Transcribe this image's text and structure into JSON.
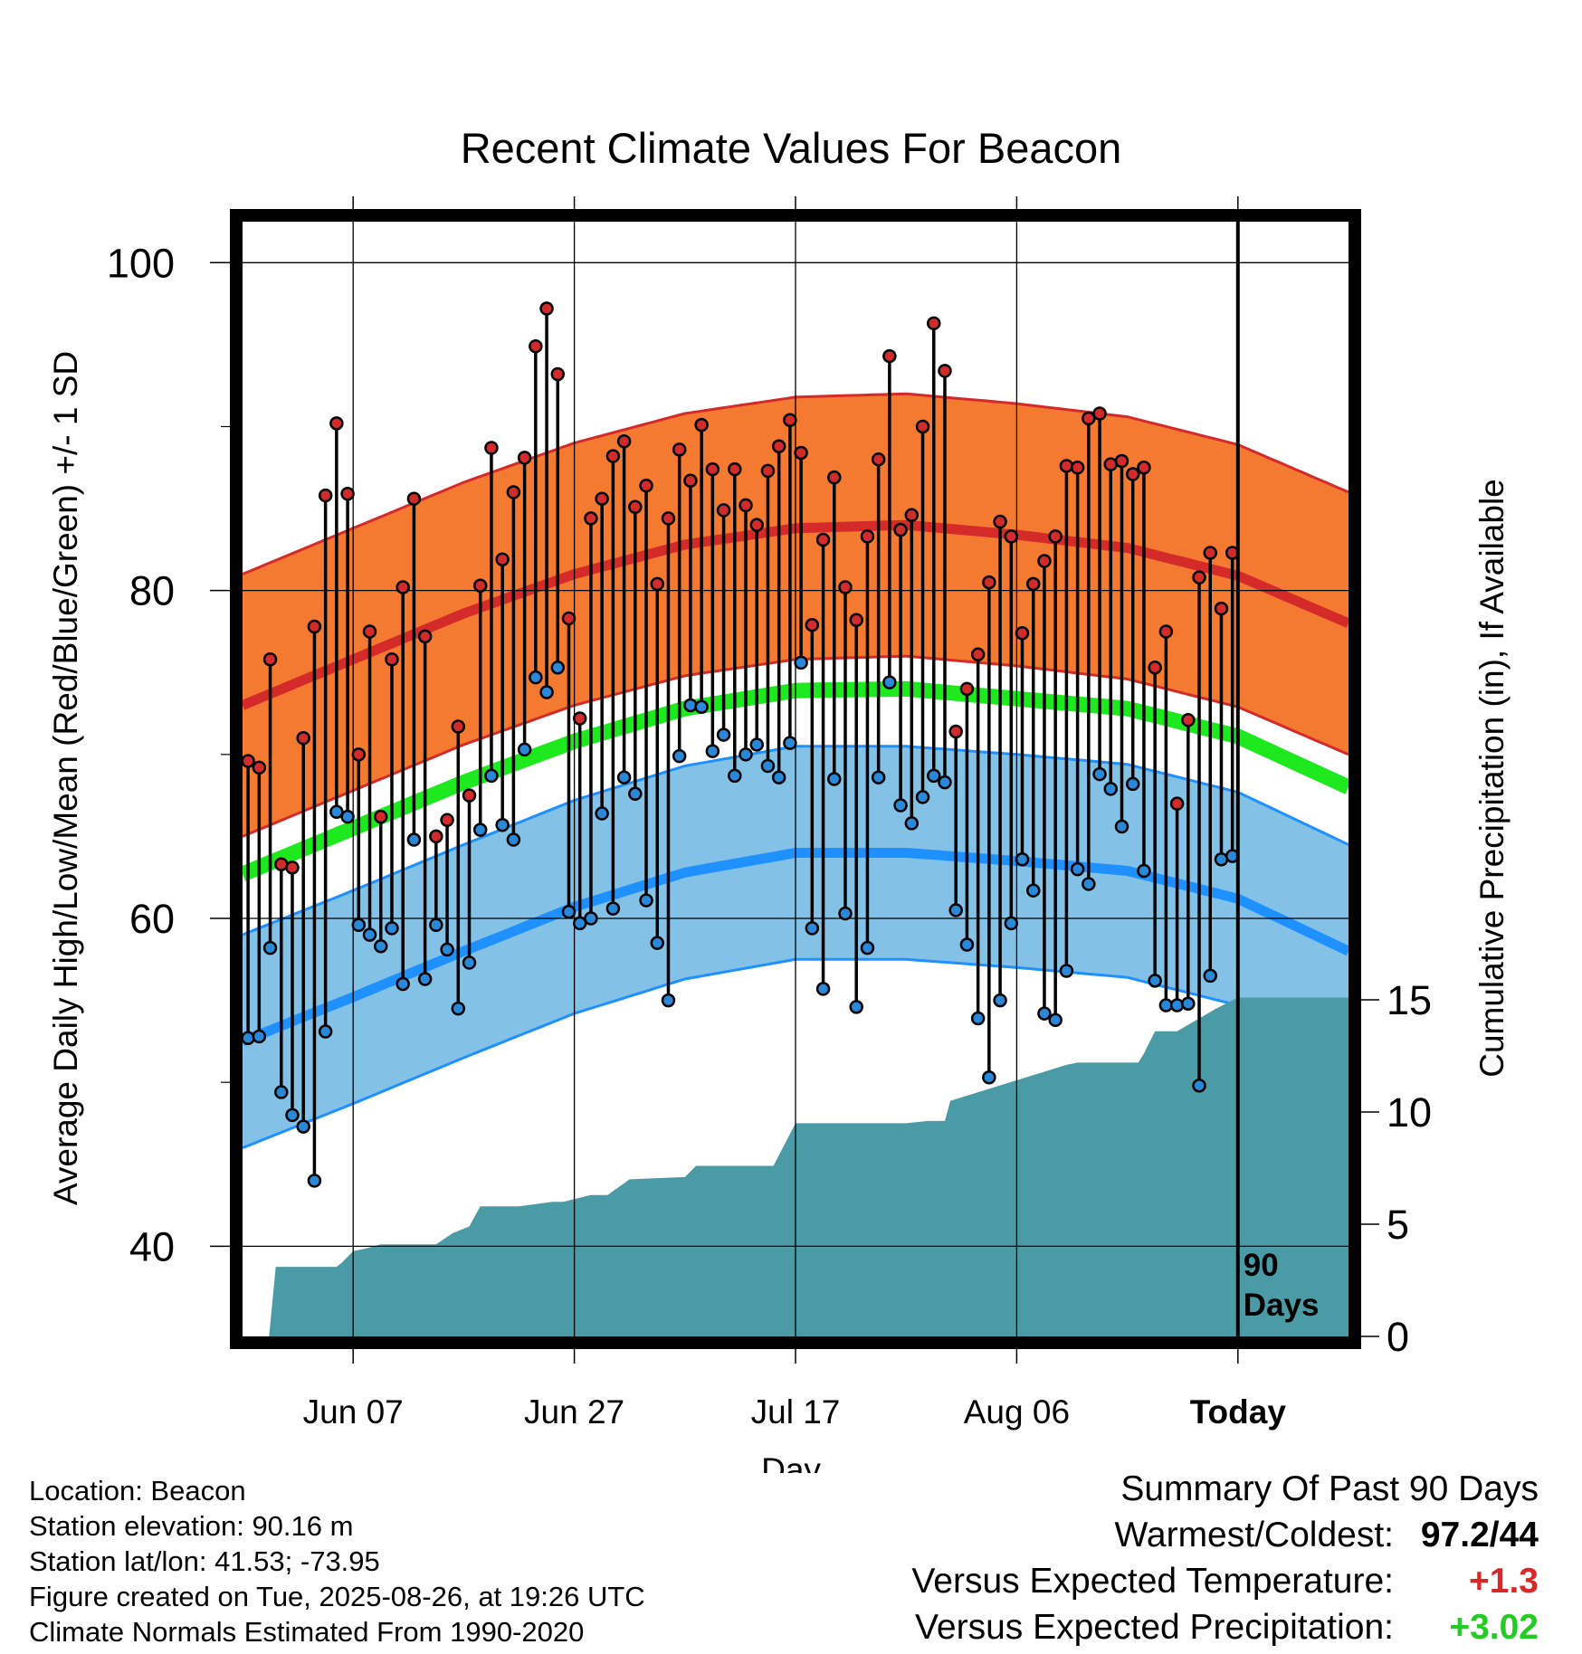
{
  "chart_data": {
    "type": "line",
    "title": "Recent Climate Values For Beacon",
    "xlabel": "Day",
    "ylabel_left": "Average Daily High/Low/Mean (Red/Blue/Green) +/- 1 SD",
    "ylabel_right": "Cumulative Precipitation (in), If Available",
    "x_ticks": [
      "Jun 07",
      "Jun 27",
      "Jul 17",
      "Aug 06",
      "Today"
    ],
    "x_tick_days": [
      10,
      30,
      50,
      70,
      90
    ],
    "x_range_days": [
      0,
      100
    ],
    "ylim_left": [
      34.5,
      102.5
    ],
    "y_ticks_left": [
      40,
      60,
      80,
      100
    ],
    "ylim_right": [
      0,
      15
    ],
    "y_ticks_right": [
      0,
      5,
      10,
      15
    ],
    "grid": true,
    "today_marker_label": [
      "90",
      "Days"
    ],
    "colors": {
      "high_band": "#f47a32",
      "high_line": "#d42a2a",
      "high_edge": "#d42a2a",
      "low_band": "#84c1e6",
      "low_line": "#1e90ff",
      "low_edge": "#1e90ff",
      "mean_line": "#1ee81e",
      "precip": "#4a9ba5",
      "high_dot": "#d22b2b",
      "low_dot": "#2a88d8"
    },
    "normals": {
      "days": [
        0,
        10,
        20,
        30,
        40,
        50,
        60,
        70,
        80,
        90,
        100
      ],
      "high": [
        73.0,
        75.8,
        78.6,
        81.0,
        82.8,
        83.8,
        84.0,
        83.4,
        82.6,
        80.9,
        78.0
      ],
      "high_sd": 8.0,
      "low": [
        52.5,
        55.2,
        58.0,
        60.7,
        62.8,
        64.0,
        64.0,
        63.5,
        62.9,
        61.2,
        58.0
      ],
      "low_sd": 6.5,
      "mean": [
        62.7,
        65.5,
        68.3,
        70.8,
        72.8,
        73.9,
        74.0,
        73.4,
        72.8,
        71.1,
        68.0
      ]
    },
    "series": [
      {
        "name": "Daily High",
        "days": [
          0,
          1,
          2,
          3,
          4,
          5,
          6,
          7,
          8,
          9,
          10,
          11,
          12,
          13,
          14,
          15,
          16,
          17,
          18,
          19,
          20,
          21,
          22,
          23,
          24,
          25,
          26,
          27,
          28,
          29,
          30,
          31,
          32,
          33,
          34,
          35,
          36,
          37,
          38,
          39,
          40,
          41,
          42,
          43,
          44,
          45,
          46,
          47,
          48,
          49,
          50,
          51,
          52,
          53,
          54,
          55,
          56,
          57,
          58,
          59,
          60,
          61,
          62,
          63,
          64,
          65,
          66,
          67,
          68,
          69,
          70,
          71,
          72,
          73,
          74,
          75,
          76,
          77,
          78,
          79,
          80,
          81,
          82,
          83,
          84,
          85,
          86,
          87,
          88,
          89
        ],
        "values": [
          69.6,
          69.2,
          75.8,
          63.3,
          63.1,
          71.0,
          77.8,
          85.8,
          90.2,
          85.9,
          70.0,
          77.5,
          66.2,
          75.8,
          80.2,
          85.6,
          77.2,
          65.0,
          66.0,
          71.7,
          67.5,
          80.3,
          88.7,
          81.9,
          86.0,
          88.1,
          94.9,
          97.2,
          93.2,
          78.3,
          72.2,
          84.4,
          85.6,
          88.2,
          89.1,
          85.1,
          86.4,
          80.4,
          84.4,
          88.6,
          86.7,
          90.1,
          87.4,
          84.9,
          87.4,
          85.2,
          84.0,
          87.3,
          88.8,
          90.4,
          88.4,
          77.9,
          83.1,
          86.9,
          80.2,
          78.2,
          83.3,
          88.0,
          94.3,
          83.7,
          84.6,
          90.0,
          96.3,
          93.4,
          71.4,
          74.0,
          76.1,
          80.5,
          84.2,
          83.3,
          77.4,
          80.4,
          81.8,
          83.3,
          87.6,
          87.5,
          90.5,
          90.8,
          87.7,
          87.9,
          87.1,
          87.5,
          75.3,
          77.5,
          67.0,
          72.1,
          80.8,
          82.3,
          78.9,
          82.3
        ]
      },
      {
        "name": "Daily Low",
        "days": [
          0,
          1,
          2,
          3,
          4,
          5,
          6,
          7,
          8,
          9,
          10,
          11,
          12,
          13,
          14,
          15,
          16,
          17,
          18,
          19,
          20,
          21,
          22,
          23,
          24,
          25,
          26,
          27,
          28,
          29,
          30,
          31,
          32,
          33,
          34,
          35,
          36,
          37,
          38,
          39,
          40,
          41,
          42,
          43,
          44,
          45,
          46,
          47,
          48,
          49,
          50,
          51,
          52,
          53,
          54,
          55,
          56,
          57,
          58,
          59,
          60,
          61,
          62,
          63,
          64,
          65,
          66,
          67,
          68,
          69,
          70,
          71,
          72,
          73,
          74,
          75,
          76,
          77,
          78,
          79,
          80,
          81,
          82,
          83,
          84,
          85,
          86,
          87,
          88,
          89
        ],
        "values": [
          52.7,
          52.8,
          58.2,
          49.4,
          48.0,
          47.3,
          44.0,
          53.1,
          66.5,
          66.2,
          59.6,
          59.0,
          58.3,
          59.4,
          56.0,
          64.8,
          56.3,
          59.6,
          58.1,
          54.5,
          57.3,
          65.4,
          68.7,
          65.7,
          64.8,
          70.3,
          74.7,
          73.8,
          75.3,
          60.4,
          59.7,
          60.0,
          66.4,
          60.6,
          68.6,
          67.6,
          61.1,
          58.5,
          55.0,
          69.9,
          73.0,
          72.9,
          70.2,
          71.2,
          68.7,
          70.0,
          70.6,
          69.3,
          68.6,
          70.7,
          75.6,
          59.4,
          55.7,
          68.5,
          60.3,
          54.6,
          58.2,
          68.6,
          74.4,
          66.9,
          65.8,
          67.4,
          68.7,
          68.3,
          60.5,
          58.4,
          53.9,
          50.3,
          55.0,
          59.7,
          63.6,
          61.7,
          54.2,
          53.8,
          56.8,
          63.0,
          62.1,
          68.8,
          67.9,
          65.6,
          68.2,
          62.9,
          56.2,
          54.7,
          54.7,
          54.8,
          49.8,
          56.5,
          63.6,
          63.8
        ]
      },
      {
        "name": "Cumulative Precipitation",
        "days": [
          2.4,
          3.0,
          8.5,
          9.0,
          10.0,
          11.0,
          12.5,
          14.0,
          17.5,
          19.0,
          20.5,
          21.5,
          25.0,
          28.0,
          29.0,
          31.5,
          32.0,
          33.0,
          35.0,
          40.0,
          41.0,
          47.0,
          48.0,
          50.0,
          54.0,
          56.0,
          58.0,
          59.5,
          60.0,
          62.0,
          63.5,
          64.0,
          74.5,
          75.5,
          76.5,
          77.0,
          81.0,
          81.5,
          82.5,
          83.5,
          84.5,
          88.0,
          90.0,
          100.0
        ],
        "values": [
          0,
          3.1,
          3.1,
          3.3,
          3.8,
          3.9,
          4.1,
          4.1,
          4.1,
          4.6,
          4.9,
          5.8,
          5.8,
          6.0,
          6.0,
          6.3,
          6.3,
          6.3,
          7.0,
          7.1,
          7.6,
          7.6,
          7.6,
          9.5,
          9.5,
          9.5,
          9.5,
          9.5,
          9.5,
          9.6,
          9.6,
          10.5,
          12.1,
          12.2,
          12.2,
          12.2,
          12.2,
          12.6,
          13.6,
          13.6,
          13.6,
          14.6,
          15.1,
          15.1
        ]
      }
    ]
  },
  "info": {
    "location": "Location: Beacon",
    "elevation": "Station elevation: 90.16 m",
    "latlon": "Station lat/lon: 41.53; -73.95",
    "created": "Figure created on Tue, 2025-08-26, at 19:26 UTC",
    "normals": "Climate Normals Estimated From 1990-2020"
  },
  "summary": {
    "title": "Summary Of Past 90 Days",
    "warm_cold_label": "Warmest/Coldest:",
    "warm_value": "97.2",
    "cold_value": "44",
    "temp_label": "Versus Expected Temperature:",
    "temp_value": "+1.3",
    "temp_color": "#d62a2a",
    "precip_label": "Versus Expected Precipitation:",
    "precip_value": "+3.02",
    "precip_color": "#22cc22"
  }
}
